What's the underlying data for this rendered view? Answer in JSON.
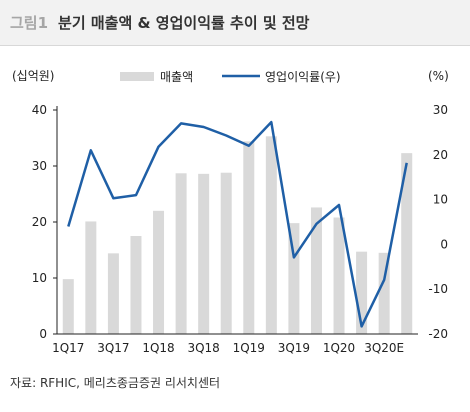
{
  "header": {
    "figure_label": "그림1",
    "title": "분기 매출액 & 영업이익률 추이 및 전망"
  },
  "source": "자료: RFHIC, 메리츠종금증권 리서치센터",
  "colors": {
    "bar": "#d9d9d9",
    "line": "#1f5fa6",
    "axis": "#222222"
  },
  "chart_data": {
    "type": "bar",
    "title": "분기 매출액 & 영업이익률 추이 및 전망",
    "left_unit": "(십억원)",
    "right_unit": "(%)",
    "ylim": [
      0,
      40
    ],
    "ylim_right": [
      -20,
      30
    ],
    "left_ticks": [
      "0",
      "10",
      "20",
      "30",
      "40"
    ],
    "right_ticks": [
      "-20",
      "-10",
      "0",
      "10",
      "20",
      "30"
    ],
    "grid": false,
    "legend_position": "top",
    "categories": [
      "1Q17",
      "2Q17",
      "3Q17",
      "4Q17",
      "1Q18",
      "2Q18",
      "3Q18",
      "4Q18",
      "1Q19",
      "2Q19",
      "3Q19",
      "4Q19",
      "1Q20",
      "2Q20",
      "3Q20E",
      "4Q20E"
    ],
    "x_tick_labels": [
      "1Q17",
      "",
      "3Q17",
      "",
      "1Q18",
      "",
      "3Q18",
      "",
      "1Q19",
      "",
      "3Q19",
      "",
      "1Q20",
      "",
      "3Q20E",
      ""
    ],
    "series": [
      {
        "name": "매출액",
        "type": "bar",
        "axis": "left",
        "values": [
          9.8,
          20.1,
          14.4,
          17.5,
          22.0,
          28.7,
          28.6,
          28.8,
          34.4,
          35.3,
          19.8,
          22.6,
          20.8,
          14.7,
          14.5,
          32.3
        ]
      },
      {
        "name": "영업이익률(우)",
        "type": "line",
        "axis": "right",
        "values": [
          4.0,
          21.0,
          10.3,
          11.0,
          21.8,
          27.0,
          26.2,
          24.3,
          22.0,
          27.3,
          -2.9,
          4.6,
          8.8,
          -18.3,
          -7.9,
          18.2
        ]
      }
    ]
  }
}
